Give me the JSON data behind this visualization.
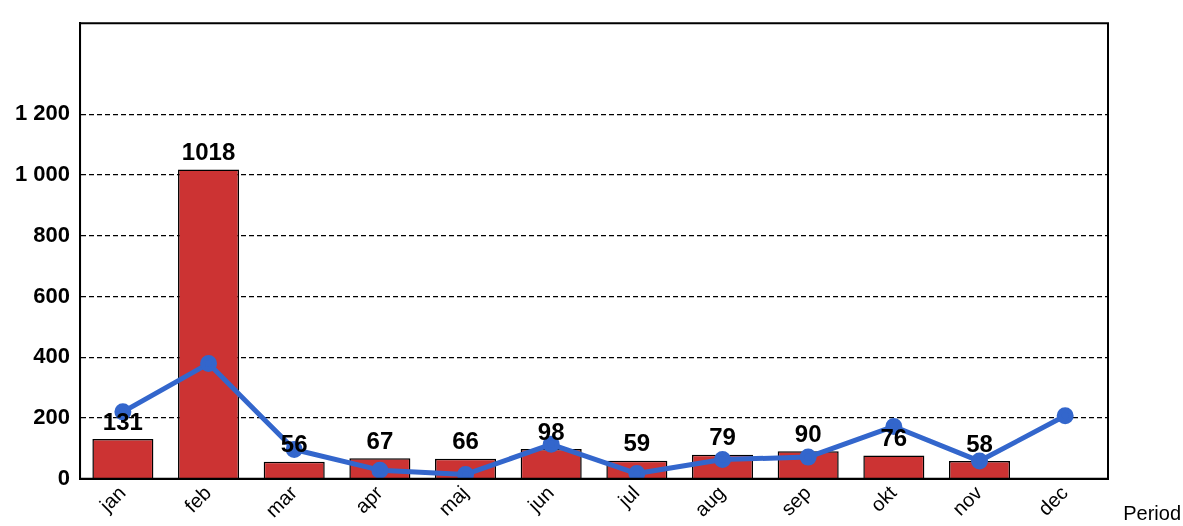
{
  "chart_data": {
    "type": "bar",
    "xlabel": "Period",
    "categories": [
      "jan",
      "feb",
      "mar",
      "apr",
      "maj",
      "jun",
      "jul",
      "aug",
      "sep",
      "okt",
      "nov",
      "dec"
    ],
    "series": [
      {
        "color": "#cc3333",
        "values": [
          131,
          1018,
          56,
          67,
          66,
          98,
          59,
          79,
          90,
          76,
          58,
          null
        ],
        "data_labels": true
      },
      {
        "type": "line",
        "color": "#3366cc",
        "marker": "circle",
        "line_style": "solid",
        "values": [
          220,
          379,
          96,
          28,
          14,
          113,
          17,
          63,
          71,
          172,
          58,
          207
        ]
      }
    ],
    "ylim": [
      0,
      1500
    ],
    "yticks": [
      0,
      200,
      400,
      600,
      800,
      1000,
      1200
    ],
    "grid": "y",
    "legend": false
  }
}
